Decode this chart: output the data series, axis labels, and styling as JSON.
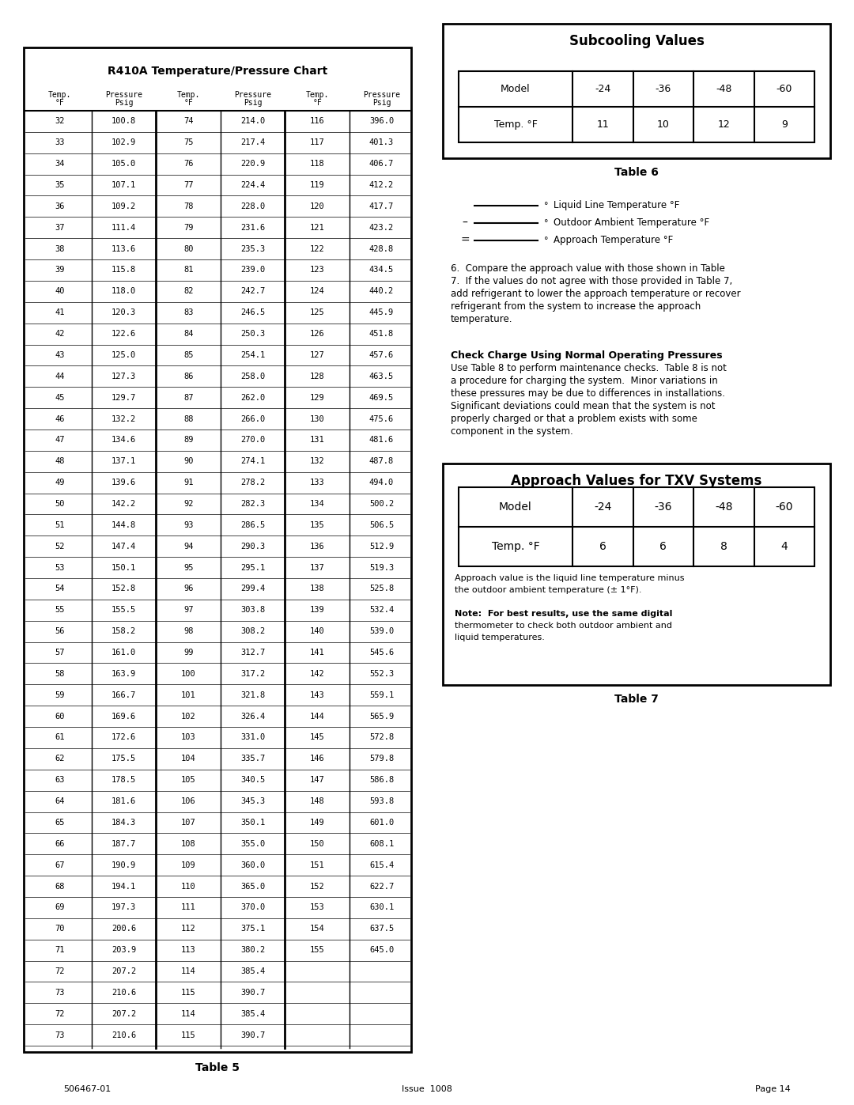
{
  "page_bg": "#ffffff",
  "left_box_title": "R410A Temperature/Pressure Chart",
  "table5_caption": "Table 5",
  "table6_caption": "Table 6",
  "table7_caption": "Table 7",
  "subcooling_title": "Subcooling Values",
  "approach_title": "Approach Values for TXV Systems",
  "footer_left": "506467-01",
  "footer_center": "Issue  1008",
  "footer_right": "Page 14",
  "subcooling_models": [
    "-24",
    "-36",
    "-48",
    "-60"
  ],
  "subcooling_temps": [
    11,
    10,
    12,
    9
  ],
  "approach_models": [
    "-24",
    "-36",
    "-48",
    "-60"
  ],
  "approach_temps": [
    6,
    6,
    8,
    4
  ],
  "temp_pressure_data": [
    [
      32,
      100.8,
      74,
      214.0,
      116,
      396.0
    ],
    [
      33,
      102.9,
      75,
      217.4,
      117,
      401.3
    ],
    [
      34,
      105.0,
      76,
      220.9,
      118,
      406.7
    ],
    [
      35,
      107.1,
      77,
      224.4,
      119,
      412.2
    ],
    [
      36,
      109.2,
      78,
      228.0,
      120,
      417.7
    ],
    [
      37,
      111.4,
      79,
      231.6,
      121,
      423.2
    ],
    [
      38,
      113.6,
      80,
      235.3,
      122,
      428.8
    ],
    [
      39,
      115.8,
      81,
      239.0,
      123,
      434.5
    ],
    [
      40,
      118.0,
      82,
      242.7,
      124,
      440.2
    ],
    [
      41,
      120.3,
      83,
      246.5,
      125,
      445.9
    ],
    [
      42,
      122.6,
      84,
      250.3,
      126,
      451.8
    ],
    [
      43,
      125.0,
      85,
      254.1,
      127,
      457.6
    ],
    [
      44,
      127.3,
      86,
      258.0,
      128,
      463.5
    ],
    [
      45,
      129.7,
      87,
      262.0,
      129,
      469.5
    ],
    [
      46,
      132.2,
      88,
      266.0,
      130,
      475.6
    ],
    [
      47,
      134.6,
      89,
      270.0,
      131,
      481.6
    ],
    [
      48,
      137.1,
      90,
      274.1,
      132,
      487.8
    ],
    [
      49,
      139.6,
      91,
      278.2,
      133,
      494.0
    ],
    [
      50,
      142.2,
      92,
      282.3,
      134,
      500.2
    ],
    [
      51,
      144.8,
      93,
      286.5,
      135,
      506.5
    ],
    [
      52,
      147.4,
      94,
      290.3,
      136,
      512.9
    ],
    [
      53,
      150.1,
      95,
      295.1,
      137,
      519.3
    ],
    [
      54,
      152.8,
      96,
      299.4,
      138,
      525.8
    ],
    [
      55,
      155.5,
      97,
      303.8,
      139,
      532.4
    ],
    [
      56,
      158.2,
      98,
      308.2,
      140,
      539.0
    ],
    [
      57,
      161.0,
      99,
      312.7,
      141,
      545.6
    ],
    [
      58,
      163.9,
      100,
      317.2,
      142,
      552.3
    ],
    [
      59,
      166.7,
      101,
      321.8,
      143,
      559.1
    ],
    [
      60,
      169.6,
      102,
      326.4,
      144,
      565.9
    ],
    [
      61,
      172.6,
      103,
      331.0,
      145,
      572.8
    ],
    [
      62,
      175.5,
      104,
      335.7,
      146,
      579.8
    ],
    [
      63,
      178.5,
      105,
      340.5,
      147,
      586.8
    ],
    [
      64,
      181.6,
      106,
      345.3,
      148,
      593.8
    ],
    [
      65,
      184.3,
      107,
      350.1,
      149,
      601.0
    ],
    [
      66,
      187.7,
      108,
      355.0,
      150,
      608.1
    ],
    [
      67,
      190.9,
      109,
      360.0,
      151,
      615.4
    ],
    [
      68,
      194.1,
      110,
      365.0,
      152,
      622.7
    ],
    [
      69,
      197.3,
      111,
      370.0,
      153,
      630.1
    ],
    [
      70,
      200.6,
      112,
      375.1,
      154,
      637.5
    ],
    [
      71,
      203.9,
      113,
      380.2,
      155,
      645.0
    ],
    [
      72,
      207.2,
      114,
      385.4,
      null,
      null
    ],
    [
      73,
      210.6,
      115,
      390.7,
      null,
      null
    ],
    [
      72,
      207.2,
      114,
      385.4,
      null,
      null
    ],
    [
      73,
      210.6,
      115,
      390.7,
      null,
      null
    ]
  ],
  "paragraph6_text": "6.  Compare the approach value with those shown in Table\n7.  If the values do not agree with those provided in Table 7,\nadd refrigerant to lower the approach temperature or recover\nrefrigerant from the system to increase the approach\ntemperature.",
  "check_charge_title": "Check Charge Using Normal Operating Pressures",
  "check_charge_text": "Use Table 8 to perform maintenance checks.  Table 8 is not\na procedure for charging the system.  Minor variations in\nthese pressures may be due to differences in installations.\nSignificant deviations could mean that the system is not\nproperly charged or that a problem exists with some\ncomponent in the system.",
  "approach_note1": "Approach value is the liquid line temperature minus\nthe outdoor ambient temperature (± 1°F).",
  "approach_note2": "Note:  For best results, use the same digital\nthermometer to check both outdoor ambient and\nliquid temperatures."
}
